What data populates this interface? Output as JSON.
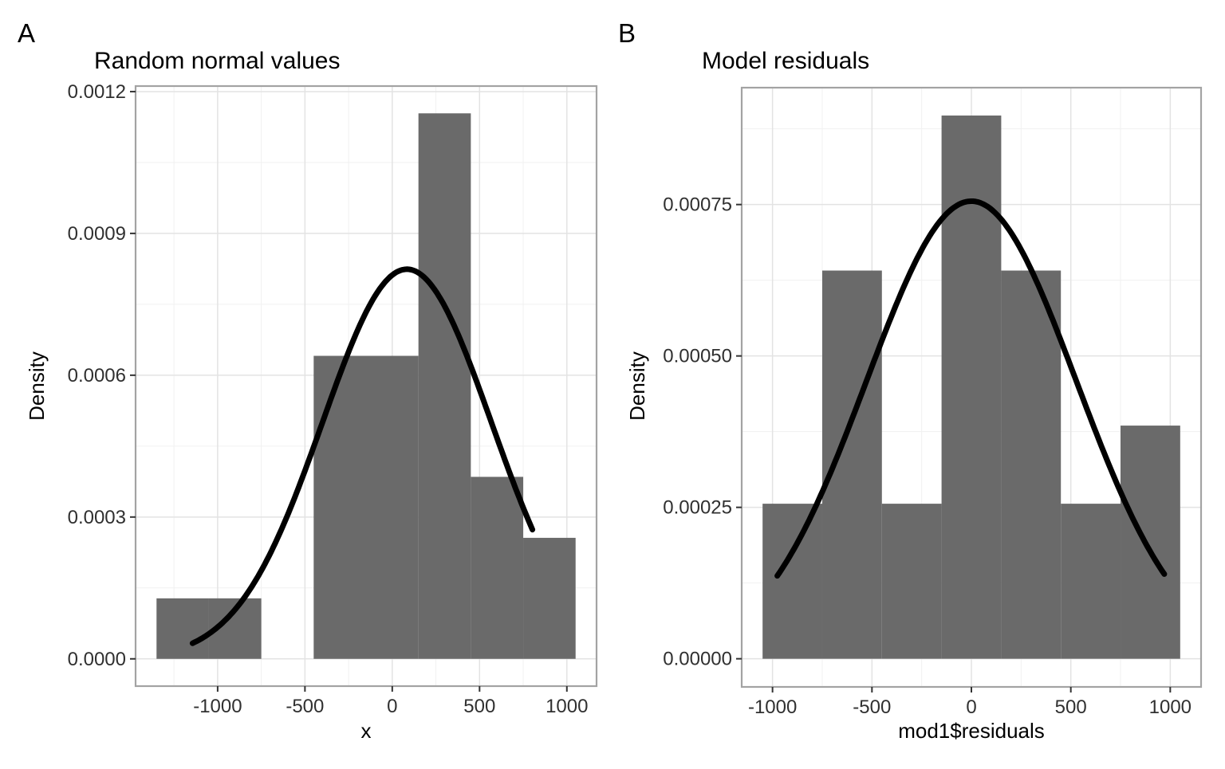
{
  "figure": {
    "background": "#FFFFFF",
    "colors": {
      "bar_fill": "#6A6A6A",
      "curve": "#000000",
      "panel_border": "#A3A3A3",
      "grid_major": "#E3E3E3",
      "grid_minor": "#F1F1F1",
      "tick_mark": "#333333",
      "tick_label": "#303030",
      "text": "#000000"
    }
  },
  "chart_data": [
    {
      "type": "histogram+normal-density-curve",
      "tag": "A",
      "title": "Random normal values",
      "xlabel": "x",
      "ylabel": "Density",
      "n": 26,
      "binwidth": 300,
      "bin_edges": [
        -1350,
        -1050,
        -750,
        -450,
        -150,
        150,
        450,
        750,
        1050
      ],
      "counts": [
        1,
        1,
        0,
        5,
        5,
        9,
        3,
        2
      ],
      "densities": [
        0.000128,
        0.000128,
        0,
        0.000641,
        0.000641,
        0.001154,
        0.000385,
        0.000256
      ],
      "normal_curve": {
        "mean": 84,
        "sd": 484,
        "x_from": -1144,
        "x_to": 803,
        "peak_density": 0.000824
      },
      "xlim": [
        -1470,
        1170
      ],
      "ylim": [
        -5.77e-05,
        0.0012117
      ],
      "xticks": [
        -1000,
        -500,
        0,
        500,
        1000
      ],
      "xtick_labels": [
        "-1000",
        "-500",
        "0",
        "500",
        "1000"
      ],
      "yticks": [
        0,
        0.0003,
        0.0006,
        0.0009,
        0.0012
      ],
      "ytick_labels": [
        "0.0000",
        "0.0003",
        "0.0006",
        "0.0009",
        "0.0012"
      ],
      "grid": true,
      "legend": "none"
    },
    {
      "type": "histogram+normal-density-curve",
      "tag": "B",
      "title": "Model residuals",
      "xlabel": "mod1$residuals",
      "ylabel": "Density",
      "n": 26,
      "binwidth": 300,
      "bin_edges": [
        -1050,
        -750,
        -450,
        -150,
        150,
        450,
        750,
        1050
      ],
      "counts": [
        2,
        5,
        2,
        7,
        5,
        2,
        3
      ],
      "densities": [
        0.000256,
        0.000641,
        0.000256,
        0.000897,
        0.000641,
        0.000256,
        0.000385
      ],
      "normal_curve": {
        "mean": 0,
        "sd": 528,
        "x_from": -976,
        "x_to": 970,
        "peak_density": 0.000756
      },
      "xlim": [
        -1155,
        1155
      ],
      "ylim": [
        -4.65e-05,
        0.000943
      ],
      "xticks": [
        -1000,
        -500,
        0,
        500,
        1000
      ],
      "xtick_labels": [
        "-1000",
        "-500",
        "0",
        "500",
        "1000"
      ],
      "yticks": [
        0,
        0.00025,
        0.0005,
        0.00075
      ],
      "ytick_labels": [
        "0.00000",
        "0.00025",
        "0.00050",
        "0.00075"
      ],
      "grid": true,
      "legend": "none"
    }
  ]
}
